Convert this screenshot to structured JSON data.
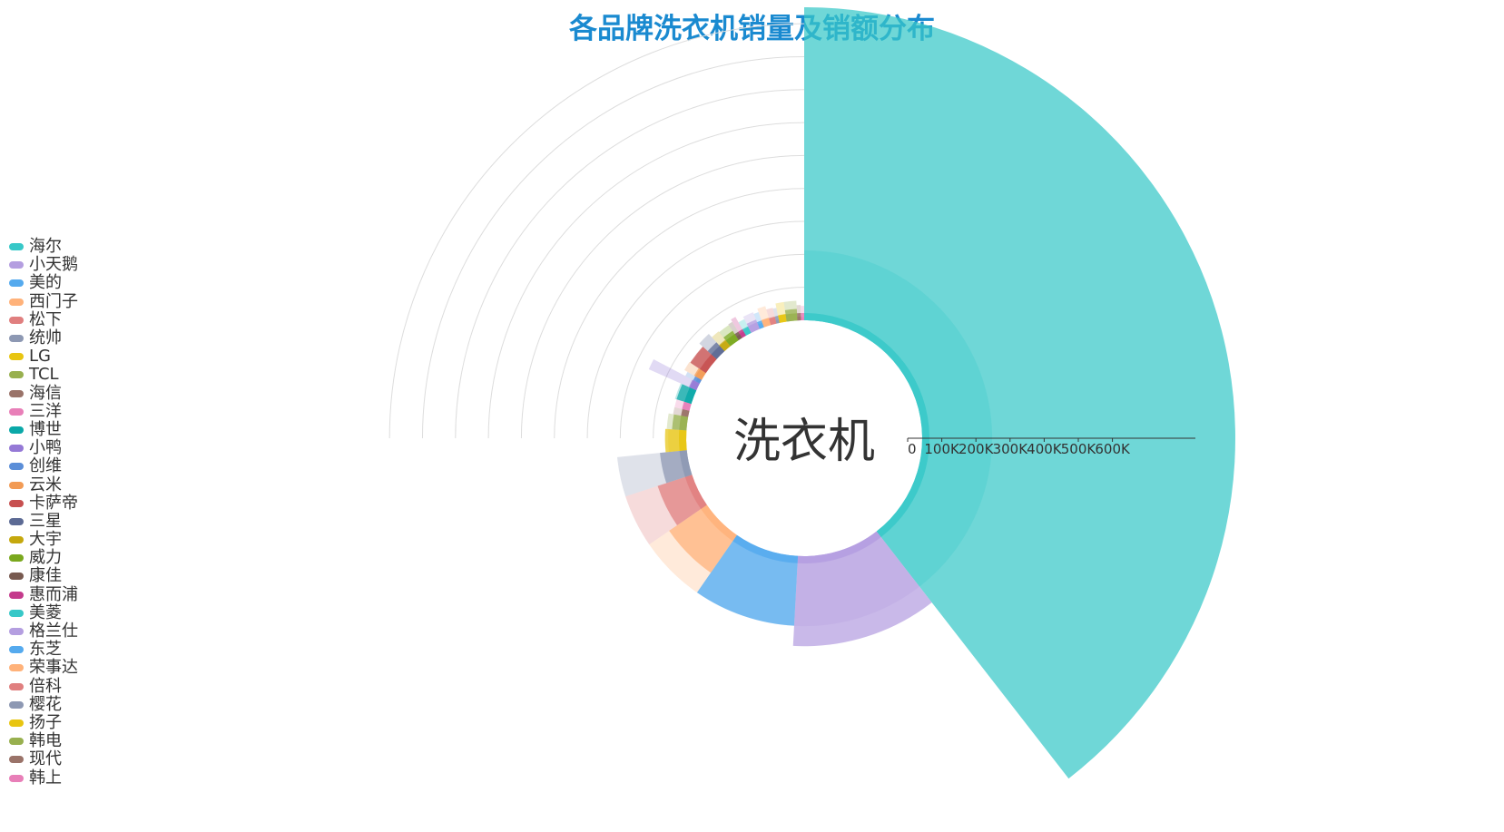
{
  "chart_data": {
    "type": "polar-bar",
    "title": "各品牌洗衣机销量及销额分布",
    "center_label": "洗衣机",
    "radial_axis": {
      "ticks": [
        "0",
        "100K",
        "200K",
        "300K",
        "400K",
        "500K",
        "600K"
      ],
      "max": 650000
    },
    "categories": [
      "海尔",
      "小天鹅",
      "美的",
      "西门子",
      "松下",
      "统帅",
      "LG",
      "TCL",
      "海信",
      "三洋",
      "博世",
      "小鸭",
      "创维",
      "云米",
      "卡萨帝",
      "三星",
      "大宇",
      "威力",
      "康佳",
      "惠而浦",
      "美菱",
      "格兰仕",
      "东芝",
      "荣事达",
      "倍科",
      "樱花",
      "扬子",
      "韩电",
      "现代",
      "韩上"
    ],
    "colors": [
      "#37c8c8",
      "#b49ee0",
      "#55aaee",
      "#ffb27a",
      "#e07f7f",
      "#8d98b3",
      "#e8c511",
      "#98b04f",
      "#9a7369",
      "#e87fb8",
      "#0aa8a8",
      "#9579d6",
      "#5b8ed8",
      "#f29b55",
      "#c75050",
      "#5c6a94",
      "#c5a80d",
      "#7aa81e",
      "#785a50",
      "#c43a8c",
      "#37c8c8",
      "#b49ee0",
      "#55aaee",
      "#ffb27a",
      "#e07f7f",
      "#8d98b3",
      "#e8c511",
      "#98b04f",
      "#9a7369",
      "#e87fb8"
    ],
    "sales_amount": [
      650000,
      187000,
      145000,
      95000,
      75000,
      56000,
      44000,
      30000,
      14000,
      16000,
      32000,
      17000,
      9000,
      18000,
      39000,
      25000,
      17000,
      23000,
      9000,
      10000,
      13000,
      21000,
      10000,
      16000,
      13000,
      7000,
      16000,
      24000,
      8000,
      7000
    ],
    "sales_volume": [
      70000,
      70000,
      70000,
      70000,
      70000,
      70000,
      12000,
      14000,
      9000,
      9000,
      11000,
      50000,
      10000,
      14000,
      12000,
      18000,
      13000,
      12000,
      13000,
      16000,
      9000,
      12000,
      10000,
      14000,
      10000,
      9000,
      14000,
      14000,
      9000,
      8000
    ]
  }
}
